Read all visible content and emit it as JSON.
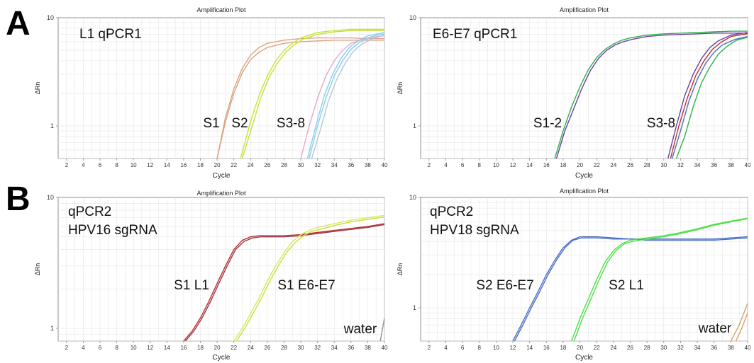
{
  "row_labels": [
    "A",
    "B"
  ],
  "colors": {
    "grid": "#e6e6e6",
    "axis": "#8c8c8c",
    "peach": "#dca384",
    "yellowgreen": "#c6e23a",
    "pink": "#e3a6d3",
    "lightblue": "#88cdef",
    "greyish": "#b7c6d3",
    "green": "#2db24a",
    "purple": "#6a3fa0",
    "red": "#bf3030",
    "olive": "#9a3a4a",
    "yellow": "#dde65c",
    "blue": "#4a70c6",
    "lime": "#4ee04a",
    "tan": "#d4a46a",
    "grey": "#8a9a8a"
  },
  "chart_data": [
    {
      "type": "line",
      "title": "Amplification Plot",
      "xlabel": "Cycle",
      "ylabel": "ΔRn",
      "ylog": true,
      "xlim": [
        1,
        40
      ],
      "ylim": [
        0.5,
        10
      ],
      "xticks": [
        "2",
        "4",
        "6",
        "8",
        "10",
        "12",
        "14",
        "16",
        "18",
        "20",
        "22",
        "24",
        "26",
        "28",
        "30",
        "32",
        "34",
        "36",
        "38",
        "40"
      ],
      "yticks": [
        "1",
        "10"
      ],
      "annotations": [
        "L1  qPCR1",
        "S1",
        "S2",
        "S3-8"
      ],
      "series": [
        {
          "color": "peach",
          "x": [
            20,
            21,
            22,
            23,
            24,
            25,
            26,
            28,
            30,
            32,
            34,
            36,
            38,
            40
          ],
          "y": [
            0.5,
            1.1,
            2.0,
            3.1,
            4.1,
            4.8,
            5.3,
            5.8,
            6.0,
            6.1,
            6.2,
            6.2,
            6.2,
            6.2
          ]
        },
        {
          "color": "peach",
          "x": [
            20,
            21,
            22,
            23,
            24,
            25,
            26,
            28,
            30,
            32,
            34,
            36,
            38,
            40
          ],
          "y": [
            0.5,
            1.2,
            2.2,
            3.4,
            4.5,
            5.3,
            5.8,
            6.2,
            6.4,
            6.5,
            6.5,
            6.5,
            6.4,
            6.4
          ]
        },
        {
          "color": "yellowgreen",
          "x": [
            22.8,
            24,
            25,
            26,
            27,
            28,
            29,
            30,
            32,
            34,
            36,
            38,
            40
          ],
          "y": [
            0.5,
            1.1,
            1.9,
            2.9,
            4.0,
            5.0,
            5.8,
            6.5,
            7.3,
            7.6,
            7.8,
            7.8,
            7.8
          ]
        },
        {
          "color": "yellowgreen",
          "x": [
            23,
            24.2,
            25.2,
            26.2,
            27.2,
            28.2,
            29.2,
            30.2,
            32,
            34,
            36,
            38,
            40
          ],
          "y": [
            0.5,
            1.0,
            1.8,
            2.8,
            3.8,
            4.8,
            5.6,
            6.3,
            7.0,
            7.4,
            7.6,
            7.6,
            7.6
          ]
        },
        {
          "color": "pink",
          "x": [
            30,
            31,
            32,
            33,
            34,
            35,
            36,
            38,
            40
          ],
          "y": [
            0.5,
            1.0,
            1.8,
            2.9,
            4.0,
            5.0,
            5.8,
            6.5,
            6.8
          ]
        },
        {
          "color": "lightblue",
          "x": [
            30.8,
            31.8,
            32.8,
            33.8,
            34.8,
            35.8,
            36.8,
            38,
            40
          ],
          "y": [
            0.5,
            1.0,
            1.9,
            3.0,
            4.2,
            5.3,
            6.1,
            6.8,
            7.3
          ]
        },
        {
          "color": "lightblue",
          "x": [
            31,
            32,
            33,
            34,
            35,
            36,
            37,
            38.5,
            40
          ],
          "y": [
            0.5,
            1.0,
            1.8,
            2.9,
            4.0,
            5.1,
            5.9,
            6.7,
            7.1
          ]
        },
        {
          "color": "greyish",
          "x": [
            31.3,
            32.3,
            33.3,
            34.3,
            35.3,
            36.3,
            37.3,
            38.6,
            40
          ],
          "y": [
            0.5,
            0.9,
            1.7,
            2.7,
            3.8,
            4.9,
            5.7,
            6.4,
            6.9
          ]
        }
      ]
    },
    {
      "type": "line",
      "title": "Amplification Plot",
      "xlabel": "Cycle",
      "ylabel": "ΔRn",
      "ylog": true,
      "xlim": [
        1,
        40
      ],
      "ylim": [
        0.5,
        10
      ],
      "xticks": [
        "2",
        "4",
        "6",
        "8",
        "10",
        "12",
        "14",
        "16",
        "18",
        "20",
        "22",
        "24",
        "26",
        "28",
        "30",
        "32",
        "34",
        "36",
        "38",
        "40"
      ],
      "yticks": [
        "1",
        "10"
      ],
      "annotations": [
        "E6-E7  qPCR1",
        "S1-2",
        "S3-8"
      ],
      "series": [
        {
          "color": "green",
          "x": [
            17,
            18,
            19,
            20,
            21,
            22,
            23,
            24,
            25,
            26,
            28,
            30,
            32,
            34,
            36,
            38,
            40
          ],
          "y": [
            0.5,
            0.9,
            1.5,
            2.3,
            3.3,
            4.3,
            5.1,
            5.7,
            6.2,
            6.5,
            6.9,
            7.1,
            7.2,
            7.3,
            7.4,
            7.5,
            7.5
          ]
        },
        {
          "color": "purple",
          "x": [
            17.2,
            18.2,
            19.2,
            20.2,
            21.2,
            22.2,
            23.2,
            24.2,
            25.2,
            26.2,
            28,
            30,
            32,
            34,
            36,
            38,
            40
          ],
          "y": [
            0.5,
            0.9,
            1.4,
            2.2,
            3.2,
            4.2,
            5.0,
            5.6,
            6.0,
            6.3,
            6.7,
            6.9,
            7.0,
            7.1,
            7.2,
            7.2,
            7.2
          ]
        },
        {
          "color": "purple",
          "x": [
            30.5,
            31.5,
            32.5,
            33.5,
            34.5,
            35.5,
            36.5,
            38,
            40
          ],
          "y": [
            0.5,
            1.0,
            1.9,
            3.0,
            4.2,
            5.3,
            6.1,
            6.9,
            7.3
          ]
        },
        {
          "color": "red",
          "x": [
            30.8,
            31.8,
            32.8,
            33.8,
            34.8,
            35.8,
            36.8,
            38,
            40
          ],
          "y": [
            0.5,
            1.0,
            1.8,
            2.9,
            4.0,
            5.1,
            5.9,
            6.7,
            7.1
          ]
        },
        {
          "color": "blue",
          "x": [
            31,
            32,
            33,
            34,
            35,
            36,
            37,
            38.5,
            40
          ],
          "y": [
            0.5,
            0.9,
            1.7,
            2.7,
            3.8,
            4.8,
            5.6,
            6.3,
            6.7
          ]
        },
        {
          "color": "green",
          "x": [
            31.5,
            32.5,
            33.5,
            34.5,
            35.5,
            36.5,
            37.5,
            38.7,
            40
          ],
          "y": [
            0.5,
            0.8,
            1.5,
            2.5,
            3.5,
            4.6,
            5.4,
            6.2,
            6.6
          ]
        }
      ]
    },
    {
      "type": "line",
      "title": "Amplification Plot",
      "xlabel": "Cycle",
      "ylabel": "ΔRn",
      "ylog": true,
      "xlim": [
        1,
        40
      ],
      "ylim": [
        0.8,
        10
      ],
      "xticks": [
        "2",
        "4",
        "6",
        "8",
        "10",
        "12",
        "14",
        "16",
        "18",
        "20",
        "22",
        "24",
        "26",
        "28",
        "30",
        "32",
        "34",
        "36",
        "38",
        "40"
      ],
      "yticks": [
        "1",
        "10"
      ],
      "annotations": [
        "qPCR2",
        "HPV16 sgRNA",
        "S1 L1",
        "S1 E6-E7",
        "water"
      ],
      "series": [
        {
          "color": "red",
          "x": [
            16,
            17,
            18,
            19,
            20,
            21,
            22,
            23,
            24,
            25,
            26,
            28,
            30,
            32,
            34,
            36,
            38,
            40
          ],
          "y": [
            0.8,
            0.95,
            1.2,
            1.6,
            2.2,
            3.0,
            4.0,
            4.7,
            5.0,
            5.1,
            5.1,
            5.1,
            5.2,
            5.4,
            5.6,
            5.8,
            6.0,
            6.3
          ]
        },
        {
          "color": "olive",
          "x": [
            16.2,
            17.2,
            18.2,
            19.2,
            20.2,
            21.2,
            22.2,
            23.2,
            24.2,
            25.2,
            26.2,
            28,
            30,
            32,
            34,
            36,
            38,
            40
          ],
          "y": [
            0.8,
            0.95,
            1.2,
            1.6,
            2.2,
            3.0,
            4.0,
            4.6,
            4.9,
            5.0,
            5.0,
            5.0,
            5.1,
            5.3,
            5.5,
            5.7,
            5.9,
            6.2
          ]
        },
        {
          "color": "yellow",
          "x": [
            22,
            23,
            24,
            25,
            26,
            27,
            28,
            29,
            30,
            31,
            32,
            34,
            36,
            38,
            40
          ],
          "y": [
            0.8,
            1.0,
            1.3,
            1.7,
            2.3,
            3.0,
            3.8,
            4.6,
            5.2,
            5.6,
            5.9,
            6.3,
            6.7,
            7.0,
            7.3
          ]
        },
        {
          "color": "yellowgreen",
          "x": [
            22.3,
            23.3,
            24.3,
            25.3,
            26.3,
            27.3,
            28.3,
            29.3,
            30.3,
            31.3,
            32.3,
            34,
            36,
            38,
            40
          ],
          "y": [
            0.8,
            1.0,
            1.3,
            1.7,
            2.3,
            3.0,
            3.8,
            4.5,
            5.1,
            5.5,
            5.7,
            6.1,
            6.5,
            6.8,
            7.1
          ]
        },
        {
          "color": "grey",
          "x": [
            39.5,
            40
          ],
          "y": [
            0.8,
            1.2
          ]
        }
      ]
    },
    {
      "type": "line",
      "title": "Amplification Plot",
      "xlabel": "Cycle",
      "ylabel": "ΔRn",
      "ylog": true,
      "xlim": [
        1,
        40
      ],
      "ylim": [
        0.5,
        10
      ],
      "xticks": [
        "2",
        "4",
        "6",
        "8",
        "10",
        "12",
        "14",
        "16",
        "18",
        "20",
        "22",
        "24",
        "26",
        "28",
        "30",
        "32",
        "34",
        "36",
        "38",
        "40"
      ],
      "yticks": [
        "1",
        "10"
      ],
      "annotations": [
        "qPCR2",
        "HPV18 sgRNA",
        "S2 E6-E7",
        "S2 L1",
        "water"
      ],
      "series": [
        {
          "color": "blue",
          "x": [
            12,
            13,
            14,
            15,
            16,
            17,
            18,
            19,
            20,
            22,
            24,
            26,
            28,
            30,
            32,
            34,
            36,
            38,
            40
          ],
          "y": [
            0.5,
            0.7,
            1.0,
            1.4,
            2.0,
            2.7,
            3.5,
            4.1,
            4.4,
            4.4,
            4.3,
            4.2,
            4.2,
            4.2,
            4.2,
            4.2,
            4.2,
            4.3,
            4.4
          ]
        },
        {
          "color": "blue",
          "x": [
            12.2,
            13.2,
            14.2,
            15.2,
            16.2,
            17.2,
            18.2,
            19.2,
            20.2,
            22,
            24,
            26,
            28,
            30,
            32,
            34,
            36,
            38,
            40
          ],
          "y": [
            0.5,
            0.7,
            1.0,
            1.4,
            2.0,
            2.7,
            3.5,
            4.1,
            4.3,
            4.3,
            4.2,
            4.2,
            4.1,
            4.1,
            4.1,
            4.1,
            4.1,
            4.2,
            4.3
          ]
        },
        {
          "color": "lime",
          "x": [
            19,
            20,
            21,
            22,
            23,
            24,
            25,
            26,
            28,
            30,
            32,
            34,
            36,
            38,
            40
          ],
          "y": [
            0.5,
            0.8,
            1.2,
            1.8,
            2.6,
            3.3,
            3.8,
            4.1,
            4.3,
            4.5,
            4.8,
            5.2,
            5.7,
            6.1,
            6.5
          ]
        },
        {
          "color": "lime",
          "x": [
            19.3,
            20.3,
            21.3,
            22.3,
            23.3,
            24.3,
            25.3,
            26.3,
            28,
            30,
            32,
            34,
            36,
            38,
            40
          ],
          "y": [
            0.5,
            0.8,
            1.2,
            1.8,
            2.6,
            3.3,
            3.8,
            4.0,
            4.2,
            4.4,
            4.7,
            5.1,
            5.6,
            6.0,
            6.4
          ]
        },
        {
          "color": "tan",
          "x": [
            38,
            39,
            40
          ],
          "y": [
            0.5,
            0.7,
            1.1
          ]
        },
        {
          "color": "tan",
          "x": [
            38.6,
            39.3,
            40
          ],
          "y": [
            0.5,
            0.65,
            0.9
          ]
        }
      ]
    }
  ]
}
